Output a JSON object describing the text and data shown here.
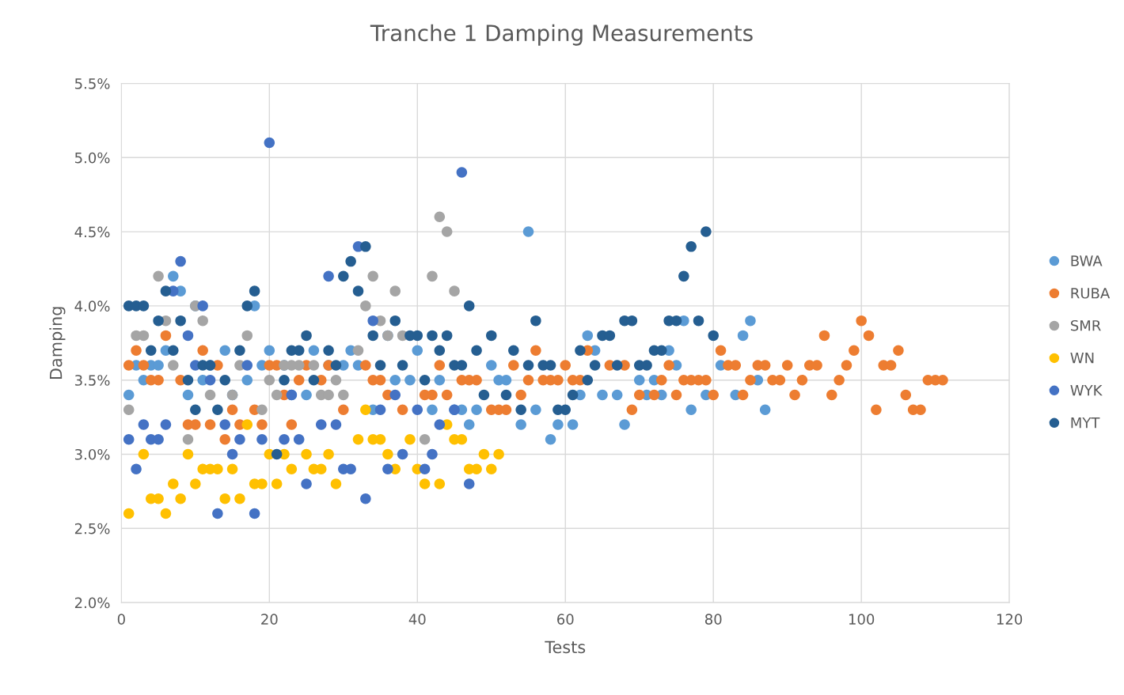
{
  "chart_data": {
    "type": "scatter",
    "title": "Tranche 1 Damping Measurements",
    "xlabel": "Tests",
    "ylabel": "Damping",
    "xlim": [
      0,
      120
    ],
    "xticks": [
      0,
      20,
      40,
      60,
      80,
      100,
      120
    ],
    "ylim": [
      2.0,
      5.5
    ],
    "yticks": [
      {
        "value": 2.0,
        "label": "2.0%"
      },
      {
        "value": 2.5,
        "label": "2.5%"
      },
      {
        "value": 3.0,
        "label": "3.0%"
      },
      {
        "value": 3.5,
        "label": "3.5%"
      },
      {
        "value": 4.0,
        "label": "4.0%"
      },
      {
        "value": 4.5,
        "label": "4.5%"
      },
      {
        "value": 5.0,
        "label": "5.0%"
      },
      {
        "value": 5.5,
        "label": "5.5%"
      }
    ],
    "grid": true,
    "legend": "right",
    "marker": "circle",
    "series": [
      {
        "name": "BWA",
        "color": "#5b9bd5",
        "x": [
          1,
          2,
          3,
          4,
          5,
          6,
          7,
          8,
          9,
          10,
          11,
          12,
          14,
          15,
          17,
          18,
          19,
          20,
          22,
          23,
          25,
          26,
          28,
          30,
          31,
          32,
          34,
          36,
          37,
          39,
          40,
          42,
          43,
          45,
          46,
          47,
          48,
          50,
          51,
          52,
          54,
          55,
          56,
          58,
          59,
          61,
          62,
          63,
          64,
          65,
          67,
          68,
          70,
          71,
          72,
          73,
          74,
          75,
          76,
          77,
          79,
          81,
          83,
          84,
          85,
          86,
          87
        ],
        "values": [
          3.4,
          3.6,
          3.5,
          3.6,
          3.6,
          3.7,
          4.2,
          4.1,
          3.4,
          4.0,
          3.5,
          3.6,
          3.7,
          3.4,
          3.5,
          4.0,
          3.6,
          3.7,
          3.6,
          3.4,
          3.4,
          3.7,
          3.6,
          3.6,
          3.7,
          3.6,
          3.3,
          3.8,
          3.5,
          3.5,
          3.7,
          3.3,
          3.5,
          3.3,
          3.3,
          3.2,
          3.3,
          3.6,
          3.5,
          3.5,
          3.2,
          4.5,
          3.3,
          3.1,
          3.2,
          3.2,
          3.4,
          3.8,
          3.7,
          3.4,
          3.4,
          3.2,
          3.5,
          3.4,
          3.5,
          3.4,
          3.7,
          3.6,
          3.9,
          3.3,
          3.4,
          3.6,
          3.4,
          3.8,
          3.9,
          3.5,
          3.3
        ]
      },
      {
        "name": "RUBA",
        "color": "#ed7d31",
        "x": [
          1,
          2,
          3,
          4,
          5,
          6,
          8,
          9,
          10,
          11,
          12,
          13,
          14,
          15,
          16,
          18,
          19,
          20,
          21,
          22,
          23,
          24,
          25,
          27,
          28,
          30,
          33,
          34,
          35,
          36,
          38,
          41,
          42,
          43,
          44,
          46,
          47,
          48,
          50,
          51,
          52,
          53,
          54,
          55,
          56,
          57,
          58,
          59,
          60,
          61,
          62,
          63,
          64,
          66,
          68,
          69,
          70,
          72,
          73,
          74,
          75,
          76,
          77,
          78,
          79,
          80,
          81,
          82,
          83,
          84,
          85,
          86,
          87,
          88,
          89,
          90,
          91,
          92,
          93,
          94,
          95,
          96,
          97,
          98,
          99,
          100,
          101,
          102,
          103,
          104,
          105,
          106,
          107,
          108,
          109,
          110,
          111
        ],
        "values": [
          3.6,
          3.7,
          3.6,
          3.5,
          3.5,
          3.8,
          3.5,
          3.2,
          3.2,
          3.7,
          3.2,
          3.6,
          3.1,
          3.3,
          3.2,
          3.3,
          3.2,
          3.6,
          3.6,
          3.4,
          3.2,
          3.5,
          3.6,
          3.5,
          3.6,
          3.3,
          3.6,
          3.5,
          3.5,
          3.4,
          3.3,
          3.4,
          3.4,
          3.6,
          3.4,
          3.5,
          3.5,
          3.5,
          3.3,
          3.3,
          3.3,
          3.6,
          3.4,
          3.5,
          3.7,
          3.5,
          3.5,
          3.5,
          3.6,
          3.5,
          3.5,
          3.7,
          null,
          3.6,
          3.6,
          3.3,
          3.4,
          3.4,
          3.5,
          3.6,
          3.4,
          3.5,
          3.5,
          3.5,
          3.5,
          3.4,
          3.7,
          3.6,
          3.6,
          3.4,
          3.5,
          3.6,
          3.6,
          3.5,
          3.5,
          3.6,
          3.4,
          3.5,
          3.6,
          3.6,
          3.8,
          3.4,
          3.5,
          3.6,
          3.7,
          3.9,
          3.8,
          3.3,
          3.6,
          3.6,
          3.7,
          3.4,
          3.3,
          3.3,
          3.5,
          3.5,
          3.5
        ]
      },
      {
        "name": "SMR",
        "color": "#a5a5a5",
        "x": [
          1,
          2,
          3,
          5,
          6,
          7,
          9,
          10,
          11,
          12,
          15,
          16,
          17,
          19,
          20,
          21,
          22,
          23,
          24,
          26,
          27,
          28,
          29,
          30,
          32,
          33,
          34,
          35,
          36,
          37,
          38,
          41,
          42,
          43,
          44,
          45
        ],
        "values": [
          3.3,
          3.8,
          3.8,
          4.2,
          3.9,
          3.6,
          3.1,
          4.0,
          3.9,
          3.4,
          3.4,
          3.6,
          3.8,
          3.3,
          3.5,
          3.4,
          3.6,
          3.6,
          3.6,
          3.6,
          3.4,
          3.4,
          3.5,
          3.4,
          3.7,
          4.0,
          4.2,
          3.9,
          3.8,
          4.1,
          3.8,
          3.1,
          4.2,
          4.6,
          4.5,
          4.1
        ]
      },
      {
        "name": "WN",
        "color": "#ffc000",
        "x": [
          1,
          3,
          4,
          5,
          6,
          7,
          8,
          9,
          10,
          11,
          12,
          13,
          14,
          15,
          16,
          17,
          18,
          19,
          20,
          21,
          22,
          23,
          25,
          26,
          27,
          28,
          29,
          32,
          33,
          34,
          35,
          36,
          37,
          39,
          40,
          41,
          43,
          44,
          45,
          46,
          47,
          48,
          49,
          50,
          51
        ],
        "values": [
          2.6,
          3.0,
          2.7,
          2.7,
          2.6,
          2.8,
          2.7,
          3.0,
          2.8,
          2.9,
          2.9,
          2.9,
          2.7,
          2.9,
          2.7,
          3.2,
          2.8,
          2.8,
          3.0,
          2.8,
          3.0,
          2.9,
          3.0,
          2.9,
          2.9,
          3.0,
          2.8,
          3.1,
          3.3,
          3.1,
          3.1,
          3.0,
          2.9,
          3.1,
          2.9,
          2.8,
          2.8,
          3.2,
          3.1,
          3.1,
          2.9,
          2.9,
          3.0,
          2.9,
          3.0
        ]
      },
      {
        "name": "WYK",
        "color": "#4472c4",
        "x": [
          1,
          2,
          3,
          4,
          5,
          6,
          7,
          8,
          9,
          10,
          11,
          12,
          13,
          14,
          15,
          16,
          17,
          18,
          19,
          20,
          22,
          23,
          24,
          25,
          27,
          28,
          29,
          30,
          31,
          32,
          33,
          34,
          35,
          36,
          37,
          38,
          40,
          41,
          42,
          43,
          45,
          46,
          47
        ],
        "values": [
          3.1,
          2.9,
          3.2,
          3.1,
          3.1,
          3.2,
          4.1,
          4.3,
          3.8,
          3.6,
          4.0,
          3.5,
          2.6,
          3.2,
          3.0,
          3.1,
          3.6,
          2.6,
          3.1,
          5.1,
          3.1,
          3.4,
          3.1,
          2.8,
          3.2,
          4.2,
          3.2,
          2.9,
          2.9,
          4.4,
          2.7,
          3.9,
          3.3,
          2.9,
          3.4,
          3.0,
          3.3,
          2.9,
          3.0,
          3.2,
          3.3,
          4.9,
          2.8
        ]
      },
      {
        "name": "MYT",
        "color": "#255e91",
        "x": [
          1,
          2,
          3,
          4,
          5,
          6,
          7,
          8,
          9,
          10,
          11,
          12,
          13,
          14,
          16,
          17,
          18,
          21,
          22,
          23,
          24,
          25,
          26,
          28,
          29,
          30,
          31,
          32,
          33,
          34,
          35,
          37,
          38,
          39,
          40,
          41,
          42,
          43,
          44,
          45,
          46,
          47,
          48,
          49,
          50,
          52,
          53,
          54,
          55,
          56,
          57,
          58,
          59,
          60,
          61,
          62,
          63,
          64,
          65,
          66,
          67,
          68,
          69,
          70,
          71,
          72,
          73,
          74,
          75,
          76,
          77,
          78,
          79,
          80
        ],
        "values": [
          4.0,
          4.0,
          4.0,
          3.7,
          3.9,
          4.1,
          3.7,
          3.9,
          3.5,
          3.3,
          3.6,
          3.6,
          3.3,
          3.5,
          3.7,
          4.0,
          4.1,
          3.0,
          3.5,
          3.7,
          3.7,
          3.8,
          3.5,
          3.7,
          3.6,
          4.2,
          4.3,
          4.1,
          4.4,
          3.8,
          3.6,
          3.9,
          3.6,
          3.8,
          3.8,
          3.5,
          3.8,
          3.7,
          3.8,
          3.6,
          3.6,
          4.0,
          3.7,
          3.4,
          3.8,
          3.4,
          3.7,
          3.3,
          3.6,
          3.9,
          3.6,
          3.6,
          3.3,
          3.3,
          3.4,
          3.7,
          3.5,
          3.6,
          3.8,
          3.8,
          3.6,
          3.9,
          3.9,
          3.6,
          3.6,
          3.7,
          3.7,
          3.9,
          3.9,
          4.2,
          4.4,
          3.9,
          4.5,
          3.8
        ]
      }
    ]
  }
}
